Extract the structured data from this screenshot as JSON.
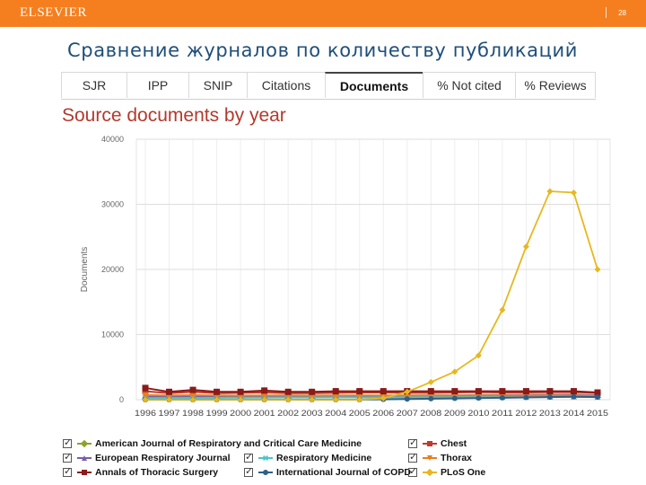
{
  "header": {
    "brand": "ELSEVIER",
    "page_number": "28"
  },
  "slide": {
    "title": "Сравнение журналов по количеству публикаций"
  },
  "tabs": [
    {
      "label": "SJR",
      "active": false
    },
    {
      "label": "IPP",
      "active": false
    },
    {
      "label": "SNIP",
      "active": false
    },
    {
      "label": "Citations",
      "active": false
    },
    {
      "label": "Documents",
      "active": true
    },
    {
      "label": "% Not cited",
      "active": false
    },
    {
      "label": "% Reviews",
      "active": false
    }
  ],
  "colors": {
    "topbar": "#f57f1f",
    "chart_title": "#b23a2e",
    "grid": "#dddddd"
  },
  "chart_data": {
    "type": "line",
    "title": "Source documents by year",
    "ylabel": "Documents",
    "xlabel": "",
    "ylim": [
      0,
      40000
    ],
    "yticks": [
      0,
      10000,
      20000,
      30000,
      40000
    ],
    "ytick_labels": [
      "0",
      "10000",
      "20000",
      "30000",
      "40000"
    ],
    "grid": true,
    "categories": [
      "1996",
      "1997",
      "1998",
      "1999",
      "2000",
      "2001",
      "2002",
      "2003",
      "2004",
      "2005",
      "2006",
      "2007",
      "2008",
      "2009",
      "2010",
      "2011",
      "2012",
      "2013",
      "2014",
      "2015"
    ],
    "series": [
      {
        "name": "American Journal of Respiratory and Critical Care Medicine",
        "color": "#8fa22e",
        "marker": "diamond",
        "values": [
          350,
          400,
          420,
          430,
          410,
          400,
          420,
          410,
          420,
          430,
          450,
          460,
          480,
          500,
          520,
          530,
          540,
          560,
          550,
          500
        ]
      },
      {
        "name": "Chest",
        "color": "#c0392b",
        "marker": "square",
        "values": [
          1300,
          1000,
          1200,
          1000,
          1050,
          1100,
          1000,
          1000,
          1050,
          1100,
          1100,
          1050,
          1050,
          1100,
          1150,
          1100,
          1100,
          1150,
          1150,
          1050
        ]
      },
      {
        "name": "European Respiratory Journal",
        "color": "#7a5fa8",
        "marker": "triangle",
        "values": [
          450,
          460,
          480,
          500,
          500,
          520,
          540,
          560,
          580,
          600,
          620,
          640,
          660,
          680,
          700,
          720,
          740,
          760,
          780,
          700
        ]
      },
      {
        "name": "Respiratory Medicine",
        "color": "#4fc3c8",
        "marker": "x",
        "values": [
          250,
          260,
          270,
          280,
          300,
          310,
          320,
          330,
          340,
          350,
          360,
          370,
          380,
          390,
          400,
          410,
          420,
          430,
          440,
          400
        ]
      },
      {
        "name": "Thorax",
        "color": "#e67e22",
        "marker": "triangle-down",
        "values": [
          700,
          650,
          700,
          650,
          640,
          660,
          650,
          640,
          660,
          670,
          650,
          640,
          650,
          640,
          650,
          640,
          630,
          640,
          650,
          600
        ]
      },
      {
        "name": "Annals of Thoracic Surgery",
        "color": "#8b1a1a",
        "marker": "square",
        "values": [
          1800,
          1200,
          1500,
          1200,
          1200,
          1400,
          1200,
          1200,
          1300,
          1300,
          1300,
          1300,
          1300,
          1300,
          1300,
          1300,
          1300,
          1300,
          1300,
          1100
        ]
      },
      {
        "name": "International Journal of COPD",
        "color": "#2e5f8a",
        "marker": "circle",
        "values": [
          0,
          0,
          0,
          0,
          0,
          0,
          0,
          0,
          0,
          0,
          50,
          100,
          150,
          200,
          250,
          300,
          350,
          400,
          450,
          400
        ]
      },
      {
        "name": "PLoS One",
        "color": "#e6b820",
        "marker": "diamond",
        "values": [
          0,
          0,
          0,
          0,
          0,
          0,
          0,
          0,
          0,
          0,
          200,
          1200,
          2700,
          4300,
          6800,
          13800,
          23500,
          32000,
          31800,
          20000
        ]
      }
    ],
    "legend": {
      "placement": "bottom",
      "items": [
        {
          "label": "American Journal of Respiratory and Critical Care Medicine"
        },
        {
          "label": "Chest"
        },
        {
          "label": "European Respiratory Journal"
        },
        {
          "label": "Respiratory Medicine"
        },
        {
          "label": "Thorax"
        },
        {
          "label": "Annals of Thoracic Surgery"
        },
        {
          "label": "International Journal of COPD"
        },
        {
          "label": "PLoS One"
        }
      ]
    }
  }
}
